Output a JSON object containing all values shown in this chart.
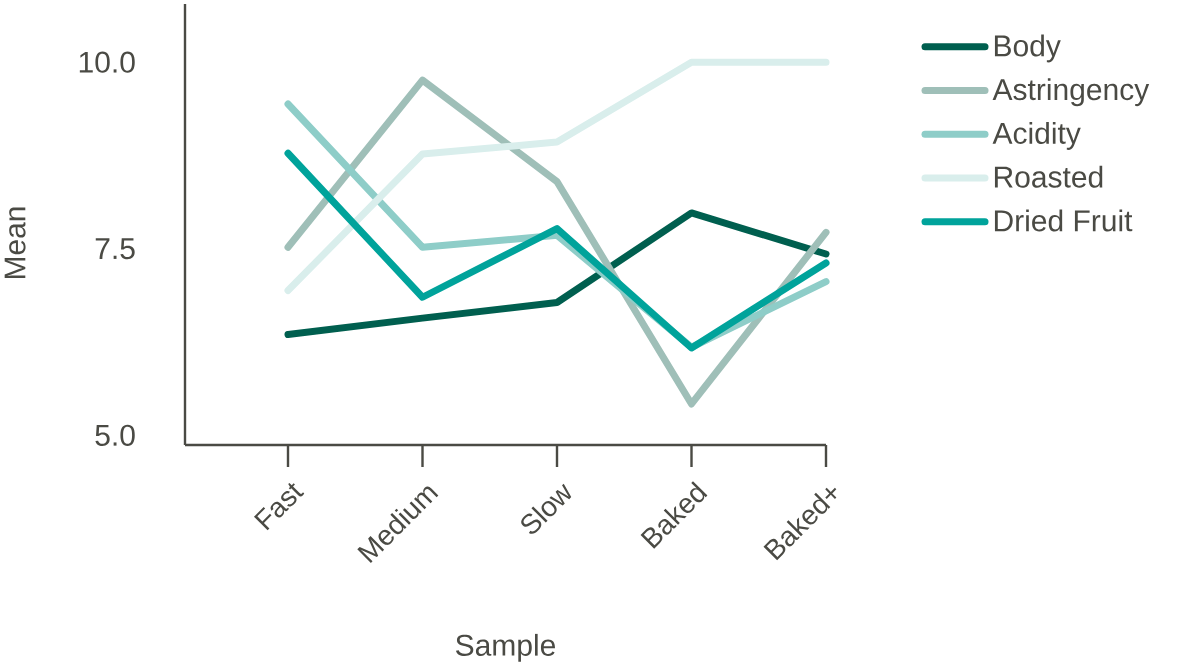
{
  "chart_data": {
    "type": "line",
    "xlabel": "Sample",
    "ylabel": "Mean",
    "categories": [
      "Fast",
      "Medium",
      "Slow",
      "Baked",
      "Baked+"
    ],
    "ylim": [
      4.87,
      10.78
    ],
    "yticks": [
      {
        "value": 10,
        "label": "10.0"
      },
      7.5,
      {
        "value": 5,
        "label": "5.0"
      }
    ],
    "series": [
      {
        "name": "Body",
        "color": "#005f4f",
        "values": [
          6.35,
          6.57,
          6.78,
          7.98,
          7.43
        ]
      },
      {
        "name": "Astringency",
        "color": "#9fbfb8",
        "values": [
          7.52,
          9.76,
          8.4,
          5.42,
          7.72
        ]
      },
      {
        "name": "Acidity",
        "color": "#8ecdc8",
        "values": [
          9.44,
          7.52,
          7.68,
          6.18,
          7.06
        ]
      },
      {
        "name": "Roasted",
        "color": "#d9eeec",
        "values": [
          6.94,
          8.77,
          8.93,
          10.0,
          10.0
        ]
      },
      {
        "name": "Dried Fruit",
        "color": "#00a39b",
        "values": [
          8.78,
          6.85,
          7.77,
          6.17,
          7.31
        ]
      }
    ],
    "legend": "right",
    "grid": false,
    "marker": "none",
    "line_style": "solid"
  }
}
